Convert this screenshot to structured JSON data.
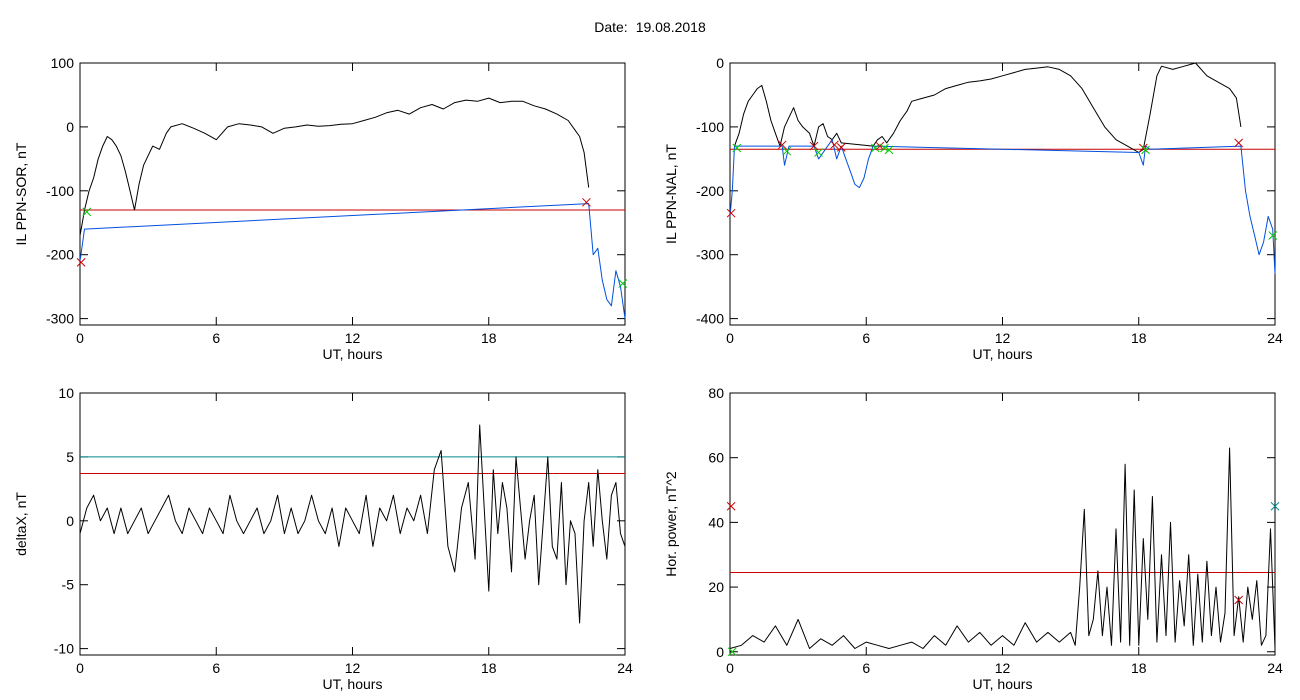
{
  "header": {
    "label": "Date:",
    "value": "19.08.2018"
  },
  "colors": {
    "black": "#000000",
    "red": "#cc0000",
    "blue": "#0050e0",
    "green": "#00cc00",
    "teal": "#008b8b"
  },
  "chart_data": [
    {
      "id": "p1",
      "type": "line",
      "xlabel": "UT, hours",
      "ylabel": "IL PPN-SOR, nT",
      "xlim": [
        0,
        24
      ],
      "ylim": [
        -310,
        100
      ],
      "xticks": [
        0,
        6,
        12,
        18,
        24
      ],
      "yticks": [
        100,
        0,
        -100,
        -200,
        -300
      ],
      "series": [
        {
          "color": "#000000",
          "x": [
            0,
            0.1,
            0.2,
            0.4,
            0.6,
            0.8,
            1.0,
            1.2,
            1.4,
            1.6,
            1.8,
            2.0,
            2.2,
            2.4,
            2.6,
            2.8,
            3.0,
            3.2,
            3.5,
            3.8,
            4.0,
            4.5,
            5.0,
            5.5,
            6.0,
            6.5,
            7.0,
            7.5,
            8.0,
            8.5,
            9.0,
            9.5,
            10.0,
            10.5,
            11.0,
            11.5,
            12.0,
            12.5,
            13.0,
            13.5,
            14.0,
            14.5,
            15.0,
            15.5,
            16.0,
            16.5,
            17.0,
            17.5,
            18.0,
            18.5,
            19.0,
            19.5,
            20.0,
            20.5,
            21.0,
            21.5,
            21.8,
            22.0,
            22.2,
            22.4
          ],
          "y": [
            -170,
            -150,
            -130,
            -100,
            -80,
            -50,
            -30,
            -15,
            -20,
            -30,
            -45,
            -70,
            -100,
            -130,
            -90,
            -60,
            -45,
            -30,
            -35,
            -10,
            0,
            5,
            -2,
            -10,
            -20,
            0,
            5,
            3,
            0,
            -10,
            -2,
            0,
            3,
            1,
            2,
            4,
            5,
            10,
            15,
            22,
            26,
            20,
            30,
            35,
            28,
            38,
            42,
            40,
            45,
            38,
            40,
            40,
            33,
            28,
            20,
            10,
            -5,
            -15,
            -40,
            -95
          ]
        },
        {
          "color": "#0050e0",
          "x": [
            0,
            0.1,
            0.2,
            22.4,
            22.6,
            22.8,
            23.0,
            23.2,
            23.4,
            23.6,
            23.8,
            24.0
          ],
          "y": [
            -210,
            -185,
            -160,
            -120,
            -200,
            -190,
            -240,
            -270,
            -280,
            -225,
            -250,
            -300
          ]
        }
      ],
      "hlines": [
        {
          "y": -130,
          "color": "#cc0000"
        }
      ],
      "markers": [
        {
          "x": 0.3,
          "y": -133,
          "color": "#00cc00"
        },
        {
          "x": 22.3,
          "y": -118,
          "color": "#cc0000"
        },
        {
          "x": 23.9,
          "y": -245,
          "color": "#00cc00"
        },
        {
          "x": 0.05,
          "y": -212,
          "color": "#cc0000"
        }
      ]
    },
    {
      "id": "p2",
      "type": "line",
      "xlabel": "UT, hours",
      "ylabel": "IL PPN-NAL, nT",
      "xlim": [
        0,
        24
      ],
      "ylim": [
        -410,
        0
      ],
      "xticks": [
        0,
        6,
        12,
        18,
        24
      ],
      "yticks": [
        0,
        -100,
        -200,
        -300,
        -400
      ],
      "series": [
        {
          "color": "#000000",
          "x": [
            0.2,
            0.4,
            0.6,
            0.8,
            1.0,
            1.2,
            1.4,
            1.6,
            1.8,
            2.0,
            2.2,
            2.4,
            2.6,
            2.8,
            3.0,
            3.2,
            3.5,
            3.7,
            3.9,
            4.1,
            4.3,
            4.5,
            4.7,
            4.9,
            6.3,
            6.5,
            6.7,
            6.9,
            7.2,
            7.5,
            7.8,
            8.0,
            8.5,
            9.0,
            9.5,
            10.0,
            10.5,
            11.0,
            11.5,
            12.0,
            12.5,
            13.0,
            13.5,
            14.0,
            14.5,
            15.0,
            15.5,
            16.0,
            16.5,
            17.0,
            17.5,
            18.0,
            18.2,
            18.5,
            18.8,
            19.0,
            19.5,
            20.0,
            20.5,
            21.0,
            21.5,
            22.0,
            22.3,
            22.5
          ],
          "y": [
            -130,
            -110,
            -80,
            -60,
            -50,
            -40,
            -35,
            -60,
            -90,
            -110,
            -130,
            -100,
            -85,
            -70,
            -90,
            -100,
            -110,
            -130,
            -100,
            -95,
            -115,
            -120,
            -110,
            -125,
            -130,
            -120,
            -115,
            -125,
            -110,
            -90,
            -75,
            -60,
            -55,
            -50,
            -40,
            -35,
            -30,
            -28,
            -25,
            -20,
            -15,
            -10,
            -8,
            -6,
            -10,
            -20,
            -40,
            -70,
            -100,
            -120,
            -130,
            -140,
            -135,
            -80,
            -20,
            -5,
            -10,
            -5,
            0,
            -20,
            -30,
            -40,
            -55,
            -100
          ]
        },
        {
          "color": "#0050e0",
          "x": [
            0,
            0.1,
            0.2,
            2.3,
            2.4,
            2.6,
            3.7,
            3.9,
            4.5,
            4.7,
            4.9,
            5.1,
            5.3,
            5.5,
            5.7,
            5.9,
            6.1,
            6.3,
            18.0,
            18.2,
            18.3,
            18.5,
            22.5,
            22.7,
            22.9,
            23.1,
            23.3,
            23.5,
            23.7,
            23.9,
            24.0
          ],
          "y": [
            -240,
            -200,
            -130,
            -130,
            -160,
            -130,
            -130,
            -150,
            -120,
            -150,
            -130,
            -150,
            -170,
            -190,
            -195,
            -180,
            -150,
            -130,
            -140,
            -160,
            -130,
            -135,
            -130,
            -200,
            -240,
            -270,
            -300,
            -280,
            -240,
            -260,
            -330
          ]
        }
      ],
      "hlines": [
        {
          "y": -135,
          "color": "#cc0000"
        }
      ],
      "markers": [
        {
          "x": 0.3,
          "y": -133,
          "color": "#00cc00"
        },
        {
          "x": 2.3,
          "y": -128,
          "color": "#cc0000"
        },
        {
          "x": 2.5,
          "y": -138,
          "color": "#00cc00"
        },
        {
          "x": 3.7,
          "y": -130,
          "color": "#cc0000"
        },
        {
          "x": 3.9,
          "y": -140,
          "color": "#00cc00"
        },
        {
          "x": 4.6,
          "y": -128,
          "color": "#cc0000"
        },
        {
          "x": 4.9,
          "y": -132,
          "color": "#cc0000"
        },
        {
          "x": 6.4,
          "y": -133,
          "color": "#00cc00"
        },
        {
          "x": 6.6,
          "y": -130,
          "color": "#cc0000"
        },
        {
          "x": 6.8,
          "y": -133,
          "color": "#00cc00"
        },
        {
          "x": 7.0,
          "y": -136,
          "color": "#00cc00"
        },
        {
          "x": 18.2,
          "y": -133,
          "color": "#cc0000"
        },
        {
          "x": 18.3,
          "y": -136,
          "color": "#00cc00"
        },
        {
          "x": 22.4,
          "y": -125,
          "color": "#cc0000"
        },
        {
          "x": 23.9,
          "y": -270,
          "color": "#00cc00"
        },
        {
          "x": 0.05,
          "y": -235,
          "color": "#cc0000"
        }
      ]
    },
    {
      "id": "p3",
      "type": "line",
      "xlabel": "UT, hours",
      "ylabel": "deltaX, nT",
      "xlim": [
        0,
        24
      ],
      "ylim": [
        -10.5,
        10
      ],
      "xticks": [
        0,
        6,
        12,
        18,
        24
      ],
      "yticks": [
        10,
        5,
        0,
        -5,
        -10
      ],
      "series": [
        {
          "color": "#000000",
          "x": [
            0,
            0.3,
            0.6,
            0.9,
            1.2,
            1.5,
            1.8,
            2.1,
            2.4,
            2.7,
            3.0,
            3.3,
            3.6,
            3.9,
            4.2,
            4.5,
            4.8,
            5.1,
            5.4,
            5.7,
            6.0,
            6.3,
            6.6,
            6.9,
            7.2,
            7.5,
            7.8,
            8.1,
            8.4,
            8.7,
            9.0,
            9.3,
            9.6,
            9.9,
            10.2,
            10.5,
            10.8,
            11.1,
            11.4,
            11.7,
            12.0,
            12.3,
            12.6,
            12.9,
            13.2,
            13.5,
            13.8,
            14.1,
            14.4,
            14.7,
            15.0,
            15.3,
            15.6,
            15.9,
            16.2,
            16.5,
            16.8,
            17.1,
            17.4,
            17.6,
            17.8,
            18.0,
            18.2,
            18.4,
            18.6,
            18.8,
            19.0,
            19.2,
            19.4,
            19.6,
            19.8,
            20.0,
            20.2,
            20.4,
            20.6,
            20.8,
            21.0,
            21.2,
            21.4,
            21.6,
            21.8,
            22.0,
            22.2,
            22.4,
            22.6,
            22.8,
            23.0,
            23.2,
            23.4,
            23.6,
            23.8,
            24.0
          ],
          "y": [
            -1,
            1,
            2,
            0,
            1,
            -1,
            1,
            -1,
            0,
            1,
            -1,
            0,
            1,
            2,
            0,
            -1,
            1,
            0,
            -1,
            1,
            0,
            -1,
            2,
            0,
            -1,
            0,
            1,
            -1,
            0,
            2,
            -1,
            1,
            -1,
            0,
            2,
            0,
            -1,
            1,
            -2,
            1,
            0,
            -1,
            2,
            -2,
            1,
            0,
            2,
            -1,
            1,
            0,
            2,
            -1,
            4,
            5.5,
            -2,
            -4,
            1,
            3,
            -3,
            7.5,
            1,
            -5.5,
            4,
            -1,
            3,
            1,
            -4,
            5,
            1,
            -3,
            0,
            2,
            -5,
            0,
            5,
            -2,
            -3,
            3,
            -5,
            0,
            -1,
            -8,
            0,
            3,
            -2,
            4,
            0,
            -3,
            2,
            3,
            -1,
            -2
          ]
        }
      ],
      "hlines": [
        {
          "y": 5,
          "color": "#008b8b"
        },
        {
          "y": 3.7,
          "color": "#cc0000"
        }
      ],
      "markers": []
    },
    {
      "id": "p4",
      "type": "line",
      "xlabel": "UT, hours",
      "ylabel": "Hor. power, nT^2",
      "xlim": [
        0,
        24
      ],
      "ylim": [
        -1,
        80
      ],
      "xticks": [
        0,
        6,
        12,
        18,
        24
      ],
      "yticks": [
        80,
        60,
        40,
        20,
        0
      ],
      "series": [
        {
          "color": "#000000",
          "x": [
            0,
            0.5,
            1.0,
            1.5,
            2.0,
            2.5,
            3.0,
            3.5,
            4.0,
            4.5,
            5.0,
            5.5,
            6.0,
            6.5,
            7.0,
            7.5,
            8.0,
            8.5,
            9.0,
            9.5,
            10.0,
            10.5,
            11.0,
            11.5,
            12.0,
            12.5,
            13.0,
            13.5,
            14.0,
            14.5,
            15.0,
            15.2,
            15.4,
            15.6,
            15.8,
            16.0,
            16.2,
            16.4,
            16.6,
            16.8,
            17.0,
            17.2,
            17.4,
            17.6,
            17.8,
            18.0,
            18.2,
            18.4,
            18.6,
            18.8,
            19.0,
            19.2,
            19.4,
            19.6,
            19.8,
            20.0,
            20.2,
            20.4,
            20.6,
            20.8,
            21.0,
            21.2,
            21.4,
            21.6,
            21.8,
            22.0,
            22.2,
            22.4,
            22.6,
            22.8,
            23.0,
            23.2,
            23.4,
            23.6,
            23.8,
            24.0
          ],
          "y": [
            1,
            2,
            5,
            3,
            8,
            2,
            10,
            1,
            4,
            2,
            5,
            1,
            3,
            2,
            1,
            2,
            3,
            1,
            5,
            2,
            8,
            3,
            6,
            2,
            5,
            2,
            9,
            3,
            6,
            3,
            6,
            2,
            20,
            44,
            5,
            10,
            25,
            5,
            20,
            2,
            38,
            3,
            58,
            2,
            50,
            2,
            35,
            10,
            48,
            3,
            30,
            5,
            40,
            3,
            22,
            8,
            30,
            2,
            24,
            3,
            28,
            5,
            20,
            3,
            12,
            63,
            5,
            17,
            3,
            20,
            10,
            22,
            2,
            5,
            38,
            1
          ]
        }
      ],
      "hlines": [
        {
          "y": 24.5,
          "color": "#cc0000"
        }
      ],
      "markers": [
        {
          "x": 0.05,
          "y": 45,
          "color": "#cc0000"
        },
        {
          "x": 22.4,
          "y": 16,
          "color": "#cc0000"
        },
        {
          "x": 24,
          "y": 45,
          "color": "#008b8b"
        },
        {
          "x": 0.1,
          "y": 0,
          "color": "#00cc00"
        }
      ]
    }
  ]
}
